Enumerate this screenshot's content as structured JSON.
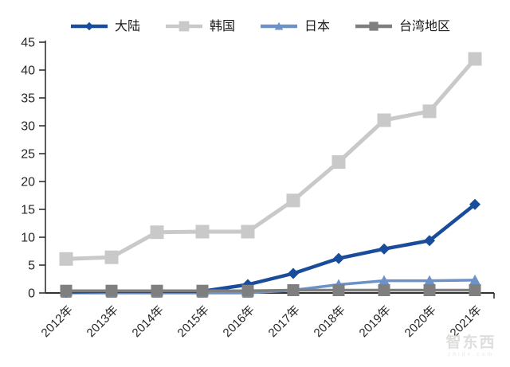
{
  "chart_data": {
    "type": "line",
    "title": "",
    "xlabel": "",
    "ylabel": "",
    "categories": [
      "2012年",
      "2013年",
      "2014年",
      "2015年",
      "2016年",
      "2017年",
      "2018年",
      "2019年",
      "2020年",
      "2021年"
    ],
    "series": [
      {
        "name": "大陆",
        "color": "#1A4C9C",
        "marker": "diamond",
        "values": [
          0.2,
          0.3,
          0.3,
          0.3,
          1.5,
          3.5,
          6.2,
          7.9,
          9.4,
          15.9
        ]
      },
      {
        "name": "韩国",
        "color": "#C9C9C9",
        "marker": "square",
        "values": [
          6.1,
          6.4,
          10.9,
          11.0,
          11.0,
          16.6,
          23.5,
          31.0,
          32.6,
          42.0
        ]
      },
      {
        "name": "日本",
        "color": "#6C92C8",
        "marker": "triangle",
        "values": [
          0.0,
          0.0,
          0.0,
          0.0,
          0.0,
          0.5,
          1.5,
          2.2,
          2.2,
          2.3
        ]
      },
      {
        "name": "台湾地区",
        "color": "#7F7F7F",
        "marker": "square",
        "values": [
          0.4,
          0.4,
          0.4,
          0.4,
          0.4,
          0.5,
          0.5,
          0.5,
          0.5,
          0.5
        ]
      }
    ],
    "ylim": [
      0,
      45
    ],
    "y_ticks": [
      45,
      40,
      35,
      30,
      25,
      20,
      15,
      10,
      5,
      0
    ],
    "grid": false,
    "legend_position": "top"
  },
  "watermark": {
    "line1": "智东西",
    "line2": "zhidx.com"
  },
  "colors": {
    "axis_line": "#333333",
    "tick_label": "#262626"
  }
}
